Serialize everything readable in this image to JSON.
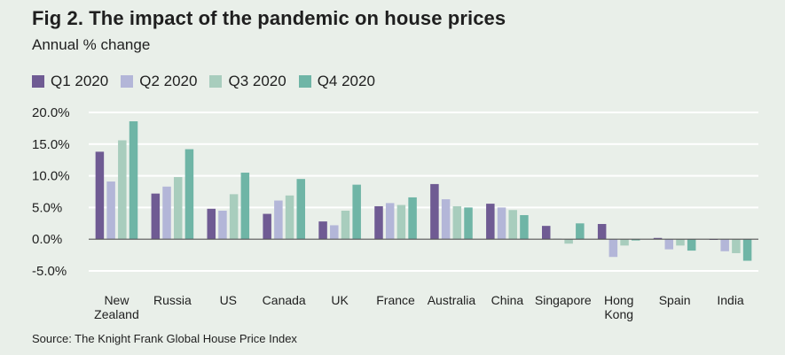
{
  "colors": {
    "background": "#e9efe9",
    "gridline": "#ffffff",
    "zero_line": "#555555",
    "text": "#1f1f1f"
  },
  "chart_data": {
    "type": "bar",
    "title": "Fig 2. The impact of the pandemic on house prices",
    "subtitle": "Annual % change",
    "source": "Source: The Knight Frank Global House Price Index",
    "categories": [
      "New Zealand",
      "Russia",
      "US",
      "Canada",
      "UK",
      "France",
      "Australia",
      "China",
      "Singapore",
      "Hong Kong",
      "Spain",
      "India"
    ],
    "category_lines": [
      [
        "New",
        "Zealand"
      ],
      [
        "Russia"
      ],
      [
        "US"
      ],
      [
        "Canada"
      ],
      [
        "UK"
      ],
      [
        "France"
      ],
      [
        "Australia"
      ],
      [
        "China"
      ],
      [
        "Singapore"
      ],
      [
        "Hong",
        "Kong"
      ],
      [
        "Spain"
      ],
      [
        "India"
      ]
    ],
    "series": [
      {
        "name": "Q1 2020",
        "color": "#6f5b93",
        "values": [
          13.8,
          7.2,
          4.8,
          4.0,
          2.8,
          5.2,
          8.7,
          5.6,
          2.1,
          2.4,
          0.2,
          -0.1
        ]
      },
      {
        "name": "Q2 2020",
        "color": "#b3b6d8",
        "values": [
          9.1,
          8.3,
          4.5,
          6.1,
          2.2,
          5.7,
          6.3,
          5.0,
          0.1,
          -2.8,
          -1.6,
          -1.9
        ]
      },
      {
        "name": "Q3 2020",
        "color": "#a8cdbd",
        "values": [
          15.6,
          9.8,
          7.1,
          6.9,
          4.5,
          5.4,
          5.2,
          4.6,
          -0.7,
          -1.0,
          -1.0,
          -2.2
        ]
      },
      {
        "name": "Q4 2020",
        "color": "#6fb5a6",
        "values": [
          18.6,
          14.2,
          10.5,
          9.5,
          8.6,
          6.6,
          5.0,
          3.8,
          2.5,
          -0.2,
          -1.8,
          -3.4
        ]
      }
    ],
    "yticks": [
      -5,
      0,
      5,
      10,
      15,
      20
    ],
    "ytick_labels": [
      "-5.0%",
      "0.0%",
      "5.0%",
      "10.0%",
      "15.0%",
      "20.0%"
    ],
    "ylim": [
      -5,
      20
    ],
    "grid": true,
    "legend_position": "top-left"
  }
}
